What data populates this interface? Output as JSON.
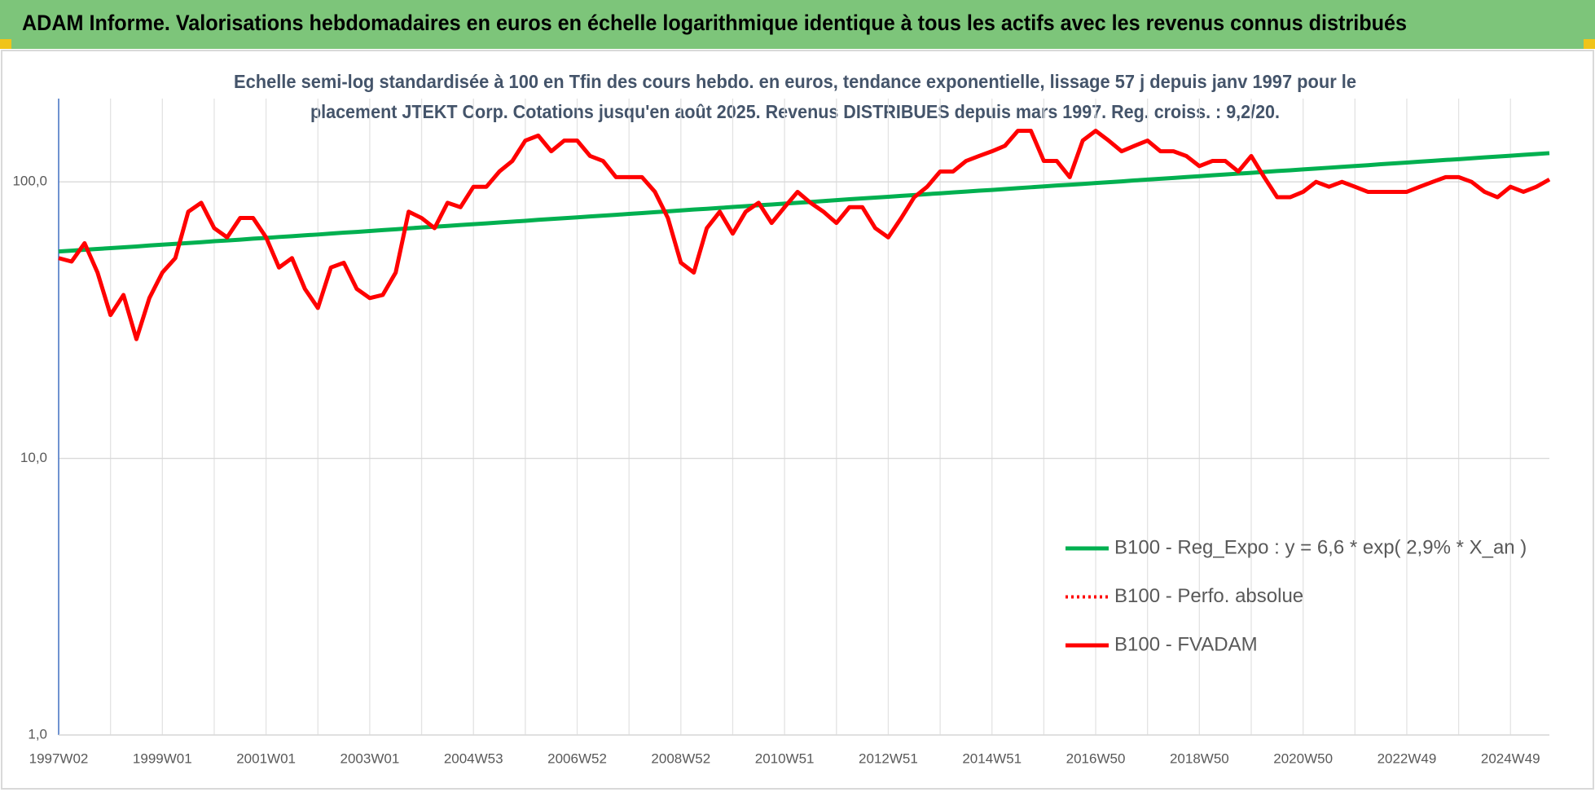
{
  "chart_data": {
    "type": "line",
    "title": "ADAM Informe. Valorisations hebdomadaires en euros en échelle logarithmique identique à tous les actifs avec les revenus connus distribués",
    "subtitle": [
      "Echelle semi-log standardisée à 100 en Tfin des cours hebdo. en euros, tendance exponentielle, lissage 57 j depuis janv 1997 pour le",
      "placement JTEKT Corp. Cotations jusqu'en août 2025. Revenus DISTRIBUES depuis mars 1997. Reg. croiss. : 9,2/20."
    ],
    "categories": [
      "1997W02",
      null,
      null,
      null,
      null,
      null,
      null,
      null,
      "1999W01",
      null,
      null,
      null,
      null,
      null,
      null,
      null,
      "2001W01",
      null,
      null,
      null,
      null,
      null,
      null,
      null,
      "2003W01",
      null,
      null,
      null,
      null,
      null,
      null,
      null,
      "2004W53",
      null,
      null,
      null,
      null,
      null,
      null,
      null,
      "2006W52",
      null,
      null,
      null,
      null,
      null,
      null,
      null,
      "2008W52",
      null,
      null,
      null,
      null,
      null,
      null,
      null,
      "2010W51",
      null,
      null,
      null,
      null,
      null,
      null,
      null,
      "2012W51",
      null,
      null,
      null,
      null,
      null,
      null,
      null,
      "2014W51",
      null,
      null,
      null,
      null,
      null,
      null,
      null,
      "2016W50",
      null,
      null,
      null,
      null,
      null,
      null,
      null,
      "2018W50",
      null,
      null,
      null,
      null,
      null,
      null,
      null,
      "2020W50",
      null,
      null,
      null,
      null,
      null,
      null,
      null,
      "2022W49",
      null,
      null,
      null,
      null,
      null,
      null,
      null,
      "2024W49",
      null,
      null,
      null
    ],
    "series": [
      {
        "name": "B100 - Reg_Expo : y = 6,6 * exp( 2,9% *  X_an )",
        "color": "#00b050",
        "line_style": "solid",
        "values": [
          56.0,
          56.4,
          56.8,
          57.2,
          57.6,
          58.0,
          58.4,
          58.9,
          59.3,
          59.7,
          60.1,
          60.5,
          61.0,
          61.4,
          61.8,
          62.3,
          62.7,
          63.2,
          63.6,
          64.1,
          64.5,
          65.0,
          65.5,
          65.9,
          66.4,
          66.9,
          67.4,
          67.9,
          68.4,
          68.8,
          69.3,
          69.8,
          70.3,
          70.8,
          71.3,
          71.8,
          72.3,
          72.9,
          73.4,
          73.9,
          74.4,
          75.0,
          75.5,
          76.0,
          76.6,
          77.1,
          77.7,
          78.2,
          78.8,
          79.4,
          79.9,
          80.5,
          81.1,
          81.7,
          82.3,
          82.8,
          83.4,
          84.0,
          84.6,
          85.2,
          85.9,
          86.5,
          87.1,
          87.7,
          88.3,
          89.0,
          89.6,
          90.3,
          90.9,
          91.6,
          92.2,
          92.9,
          93.5,
          94.2,
          94.9,
          95.6,
          96.3,
          97.0,
          97.6,
          98.3,
          99.0,
          99.7,
          100.4,
          101.2,
          101.9,
          102.6,
          103.3,
          104.1,
          104.8,
          105.6,
          106.3,
          107.1,
          107.8,
          108.6,
          109.4,
          110.1,
          110.9,
          111.7,
          112.5,
          113.3,
          114.1,
          114.9,
          115.8,
          116.6,
          117.4,
          118.3,
          119.1,
          120.0,
          120.8,
          121.7,
          122.6,
          123.4,
          124.3,
          125.2,
          126.1,
          127.0
        ]
      },
      {
        "name": "B100 - Perfo. absolue",
        "color": "#ff0000",
        "line_style": "dotted",
        "values": [
          53,
          51.5,
          60,
          47,
          33,
          39,
          27,
          38,
          47,
          53,
          78,
          84,
          68,
          63,
          74,
          74,
          63,
          49,
          53,
          41,
          35,
          49,
          51,
          41,
          38,
          39,
          47,
          78,
          74,
          68,
          84,
          81,
          96,
          96,
          109,
          119,
          141,
          147,
          129,
          141,
          141,
          124,
          119,
          104,
          104,
          104,
          92,
          74,
          51,
          47,
          68,
          78,
          65,
          78,
          84,
          71,
          81,
          92,
          84,
          78,
          71,
          81,
          81,
          68,
          63,
          74,
          88,
          96,
          109,
          109,
          119,
          124,
          129,
          135,
          153,
          153,
          119,
          119,
          104,
          141,
          153,
          141,
          129,
          135,
          141,
          129,
          129,
          124,
          114,
          119,
          119,
          109,
          124,
          104,
          88,
          88,
          92,
          100,
          96,
          100,
          96,
          92,
          92,
          92,
          92,
          96,
          100,
          104,
          104,
          100,
          92,
          88,
          96,
          92,
          96,
          102
        ]
      },
      {
        "name": "B100 - FVADAM",
        "color": "#ff0000",
        "line_style": "solid",
        "values": [
          53,
          51.5,
          60,
          47,
          33,
          39,
          27,
          38,
          47,
          53,
          78,
          84,
          68,
          63,
          74,
          74,
          63,
          49,
          53,
          41,
          35,
          49,
          51,
          41,
          38,
          39,
          47,
          78,
          74,
          68,
          84,
          81,
          96,
          96,
          109,
          119,
          141,
          147,
          129,
          141,
          141,
          124,
          119,
          104,
          104,
          104,
          92,
          74,
          51,
          47,
          68,
          78,
          65,
          78,
          84,
          71,
          81,
          92,
          84,
          78,
          71,
          81,
          81,
          68,
          63,
          74,
          88,
          96,
          109,
          109,
          119,
          124,
          129,
          135,
          153,
          153,
          119,
          119,
          104,
          141,
          153,
          141,
          129,
          135,
          141,
          129,
          129,
          124,
          114,
          119,
          119,
          109,
          124,
          104,
          88,
          88,
          92,
          100,
          96,
          100,
          96,
          92,
          92,
          92,
          92,
          96,
          100,
          104,
          104,
          100,
          92,
          88,
          96,
          92,
          96,
          102
        ]
      }
    ],
    "ylim": [
      1,
      200
    ],
    "log_scale": true,
    "yticks": [
      {
        "value": 1,
        "label": "1,0"
      },
      {
        "value": 10,
        "label": "10,0"
      },
      {
        "value": 100,
        "label": "100,0"
      }
    ],
    "grid": true,
    "legend": "lower right"
  }
}
